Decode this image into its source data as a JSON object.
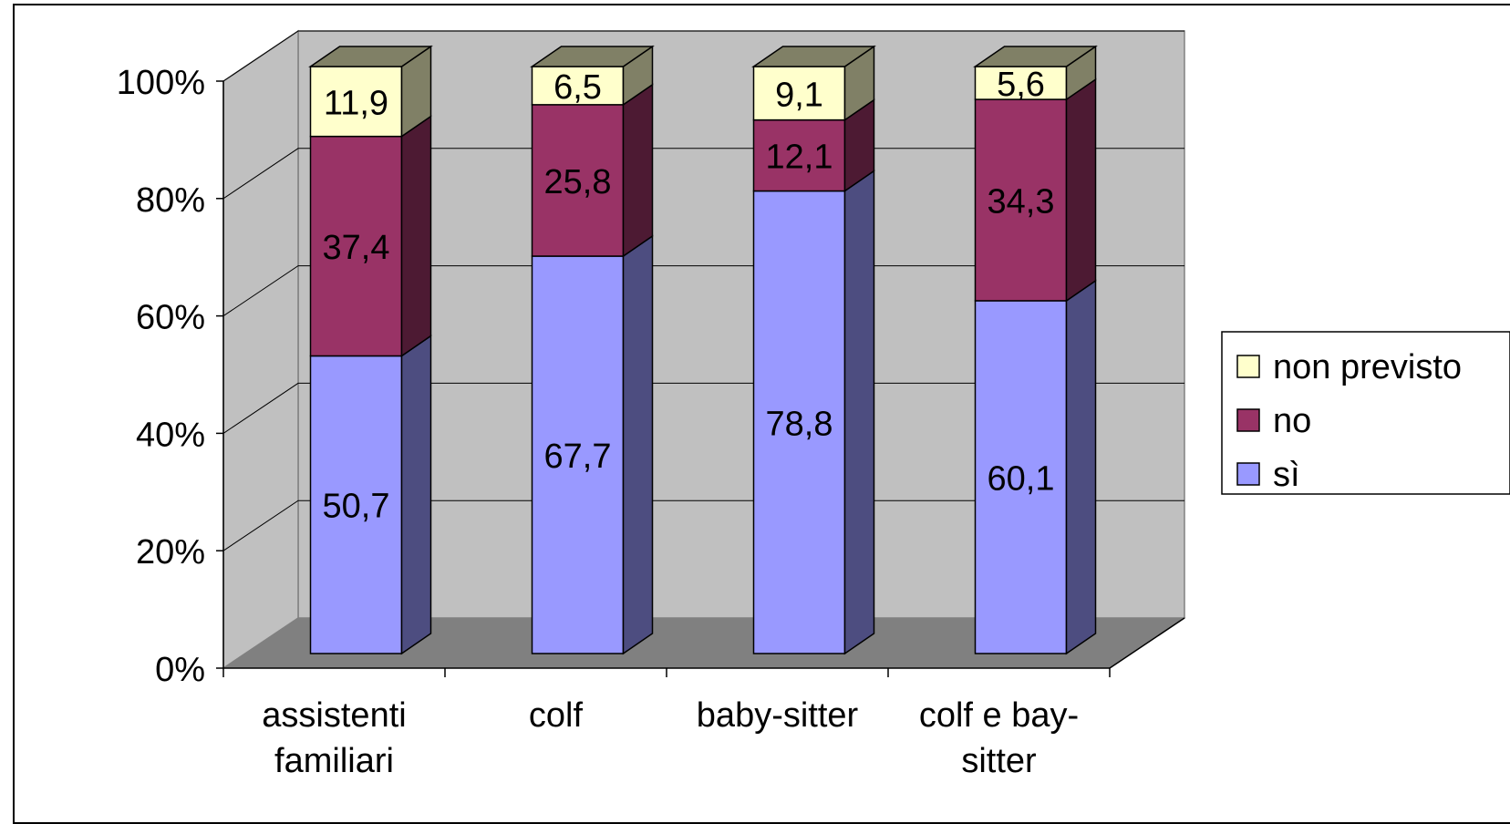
{
  "chart_data": {
    "type": "bar",
    "stacked": true,
    "three_d": true,
    "title": "",
    "xlabel": "",
    "ylabel": "",
    "ylim": [
      0,
      100
    ],
    "y_ticks": [
      "0%",
      "20%",
      "40%",
      "60%",
      "80%",
      "100%"
    ],
    "y_tick_values": [
      0,
      20,
      40,
      60,
      80,
      100
    ],
    "categories": [
      [
        "assistenti",
        "familiari"
      ],
      [
        "colf"
      ],
      [
        "baby-sitter"
      ],
      [
        "colf e bay-",
        "sitter"
      ]
    ],
    "series": [
      {
        "name": "sì",
        "values": [
          50.7,
          67.7,
          78.8,
          60.1
        ],
        "labels": [
          "50,7",
          "67,7",
          "78,8",
          "60,1"
        ],
        "color": "#9999ff",
        "side_color": "#4d4d80"
      },
      {
        "name": "no",
        "values": [
          37.4,
          25.8,
          12.1,
          34.3
        ],
        "labels": [
          "37,4",
          "25,8",
          "12,1",
          "34,3"
        ],
        "color": "#993366",
        "side_color": "#4d1a33"
      },
      {
        "name": "non previsto",
        "values": [
          11.9,
          6.5,
          9.1,
          5.6
        ],
        "labels": [
          "11,9",
          "6,5",
          "9,1",
          "5,6"
        ],
        "color": "#ffffcc",
        "side_color": "#808066"
      }
    ],
    "legend": {
      "position": "right",
      "order": [
        "non previsto",
        "no",
        "sì"
      ]
    },
    "grid": true,
    "colors": {
      "wall": "#c0c0c0",
      "floor": "#808080"
    }
  }
}
